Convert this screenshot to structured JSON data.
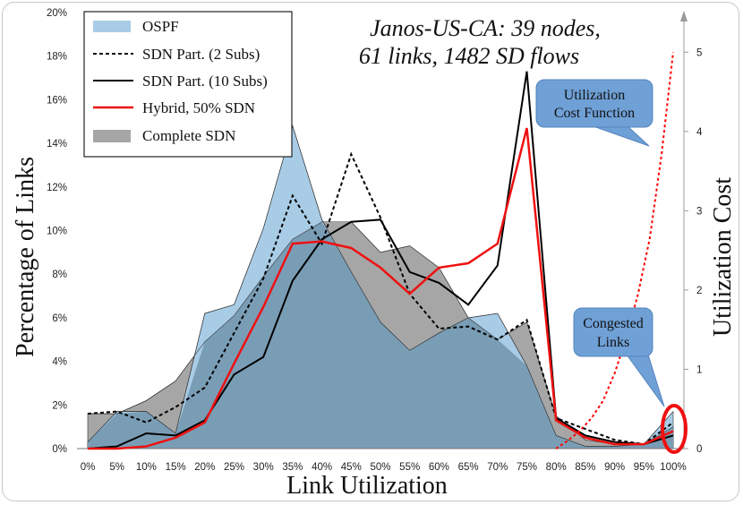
{
  "chart_data": {
    "type": "area",
    "subtitle_lines": [
      "Janos-US-CA:  39 nodes,",
      "61 links, 1482 SD flows"
    ],
    "xlabel": "Link Utilization",
    "ylabel": "Percentage of Links",
    "y2label": "Utilization Cost",
    "categories": [
      "0%",
      "5%",
      "10%",
      "15%",
      "20%",
      "25%",
      "30%",
      "35%",
      "40%",
      "45%",
      "50%",
      "55%",
      "60%",
      "65%",
      "70%",
      "75%",
      "80%",
      "85%",
      "90%",
      "95%",
      "100%"
    ],
    "ylim": [
      0,
      20
    ],
    "yticks": [
      0,
      2,
      4,
      6,
      8,
      10,
      12,
      14,
      16,
      18,
      20
    ],
    "yticklabels": [
      "0%",
      "2%",
      "4%",
      "6%",
      "8%",
      "10%",
      "12%",
      "14%",
      "16%",
      "18%",
      "20%"
    ],
    "y2lim": [
      0,
      5.5
    ],
    "y2ticks": [
      0,
      1,
      2,
      3,
      4,
      5
    ],
    "y2ticklabels": [
      "0",
      "1",
      "2",
      "3",
      "4",
      "5"
    ],
    "series": [
      {
        "name": "OSPF",
        "style": "area",
        "color": "#a9cce6",
        "values": [
          0.3,
          1.7,
          1.7,
          0.7,
          6.2,
          6.6,
          10.1,
          14.8,
          10.5,
          8.1,
          5.8,
          4.5,
          5.3,
          6.0,
          6.2,
          3.8,
          0.6,
          0.1,
          0.1,
          0.2,
          1.7
        ]
      },
      {
        "name": "SDN Part. (2 Subs)",
        "style": "dashed",
        "color": "#000000",
        "values": [
          1.6,
          1.7,
          1.2,
          1.9,
          2.8,
          5.3,
          7.8,
          11.6,
          9.4,
          13.5,
          10.6,
          7.1,
          5.5,
          5.6,
          5.0,
          5.9,
          1.4,
          0.9,
          0.4,
          0.2,
          1.2
        ]
      },
      {
        "name": "SDN Part. (10 Subs)",
        "style": "line",
        "color": "#000000",
        "values": [
          0.0,
          0.1,
          0.7,
          0.6,
          1.3,
          3.4,
          4.2,
          7.7,
          9.6,
          10.4,
          10.5,
          8.1,
          7.6,
          6.6,
          8.4,
          17.3,
          1.4,
          0.6,
          0.3,
          0.2,
          0.6
        ]
      },
      {
        "name": "Hybrid, 50% SDN",
        "style": "line",
        "color": "#ee1111",
        "values": [
          0.0,
          0.0,
          0.1,
          0.5,
          1.2,
          3.9,
          6.5,
          9.4,
          9.5,
          9.2,
          8.3,
          7.1,
          8.3,
          8.5,
          9.4,
          14.7,
          1.3,
          0.5,
          0.2,
          0.2,
          0.8
        ]
      },
      {
        "name": "Complete SDN",
        "style": "area",
        "color": "#a6a6a6",
        "values": [
          1.6,
          1.6,
          2.2,
          3.1,
          4.9,
          6.1,
          7.9,
          9.6,
          10.4,
          10.4,
          9.0,
          9.3,
          8.3,
          6.0,
          5.0,
          5.8,
          1.5,
          0.4,
          0.2,
          0.2,
          1.0
        ]
      }
    ],
    "cost_function": {
      "name": "Utilization Cost Function",
      "color": "#ff0000",
      "x": [
        0.8,
        0.82,
        0.84,
        0.86,
        0.88,
        0.9,
        0.92,
        0.94,
        0.96,
        0.98,
        1.0
      ],
      "y": [
        0.0,
        0.1,
        0.22,
        0.38,
        0.6,
        0.95,
        1.4,
        1.95,
        2.65,
        3.7,
        5.0
      ]
    },
    "callouts": [
      {
        "text_lines": [
          "Utilization",
          "Cost Function"
        ]
      },
      {
        "text_lines": [
          "Congested",
          "Links"
        ]
      }
    ]
  }
}
